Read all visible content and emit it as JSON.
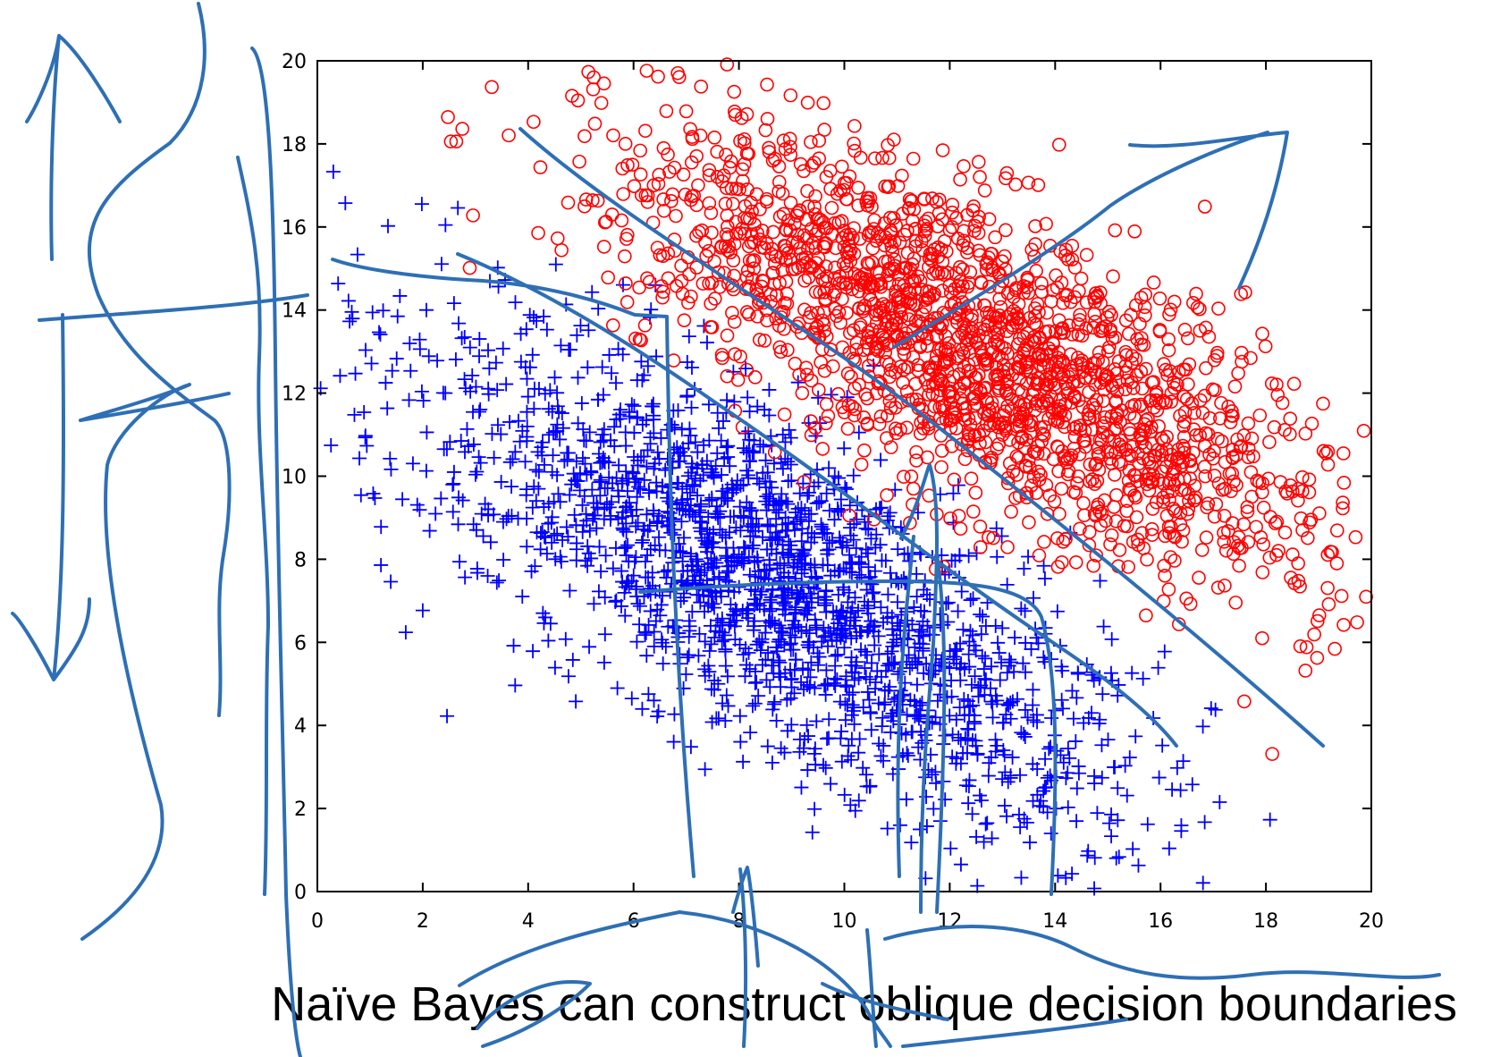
{
  "slide": {
    "caption": "Naïve Bayes can construct oblique decision boundaries"
  },
  "colors": {
    "class_plus": "#0000ff",
    "class_circle": "#ff0000",
    "ink": "#2e6fb5",
    "axes": "#000000"
  },
  "chart_data": {
    "type": "scatter",
    "title": "",
    "xlabel": "",
    "ylabel": "",
    "xlim": [
      0,
      20
    ],
    "ylim": [
      0,
      20
    ],
    "x_ticks": [
      "0",
      "2",
      "4",
      "6",
      "8",
      "10",
      "12",
      "14",
      "16",
      "18",
      "20"
    ],
    "y_ticks": [
      "0",
      "2",
      "4",
      "6",
      "8",
      "10",
      "12",
      "14",
      "16",
      "18",
      "20"
    ],
    "grid": false,
    "legend": "none",
    "series": [
      {
        "marker": "plus",
        "color": "#0000ff",
        "n_points": 2000,
        "distribution": {
          "mean": [
            8.5,
            7.5
          ],
          "std_major": 4.2,
          "std_minor": 1.6,
          "axis_angle_deg": -41
        }
      },
      {
        "marker": "circle",
        "color": "#ff0000",
        "n_points": 2000,
        "distribution": {
          "mean": [
            12.5,
            13.0
          ],
          "std_major": 4.0,
          "std_minor": 1.5,
          "axis_angle_deg": -36
        }
      }
    ]
  },
  "annotations": {
    "ink_strokes": [
      {
        "name": "oblique-boundary-line"
      },
      {
        "name": "upper-arrow"
      },
      {
        "name": "blue-class-contour-outer"
      },
      {
        "name": "blue-class-contour-inner"
      },
      {
        "name": "vertical-marginal-sketch"
      },
      {
        "name": "vertical-marginal-sketch-2"
      },
      {
        "name": "y-axis-ink-line"
      },
      {
        "name": "left-axis-arrow"
      },
      {
        "name": "left-marginal-curve"
      },
      {
        "name": "horizontal-marginal-curve"
      },
      {
        "name": "bottom-arrow"
      },
      {
        "name": "bottom-marginal-curve"
      },
      {
        "name": "bottom-cross"
      }
    ]
  }
}
